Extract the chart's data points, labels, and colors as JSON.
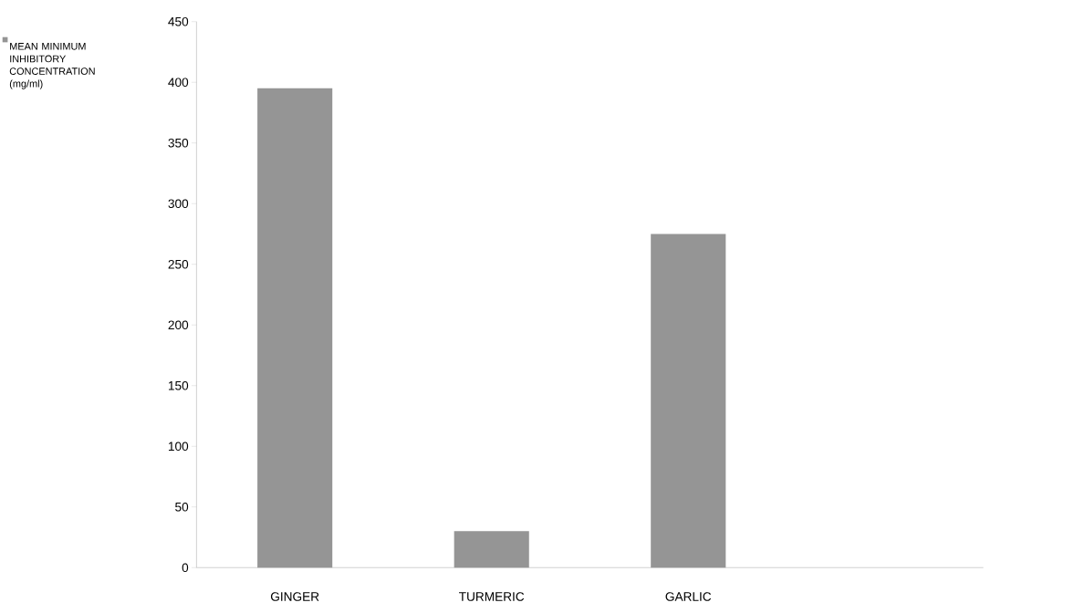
{
  "chart_data": {
    "type": "bar",
    "categories": [
      "GINGER",
      "TURMERIC",
      "GARLIC",
      null
    ],
    "series": [
      {
        "name": "MEAN MINIMUM INHIBITORY CONCENTRATION (mg/ml)",
        "color": "#959595",
        "values": [
          395,
          30,
          275,
          null
        ]
      }
    ],
    "ylim": [
      0,
      450
    ],
    "yticks": [
      0,
      50,
      100,
      150,
      200,
      250,
      300,
      350,
      400,
      450
    ],
    "grid": false,
    "legend": "top left"
  }
}
